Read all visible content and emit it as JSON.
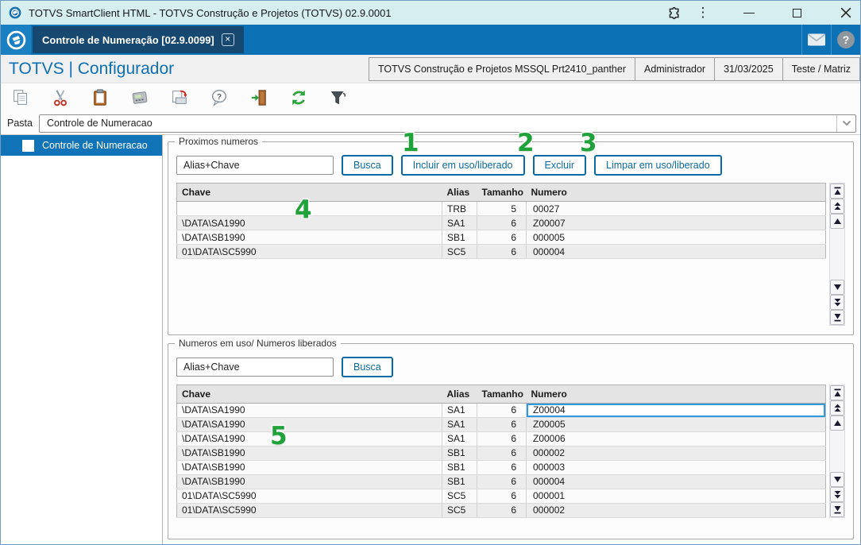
{
  "window": {
    "title": "TOTVS SmartClient HTML - TOTVS Construção e Projetos (TOTVS) 02.9.0001",
    "icons": [
      "app-logo",
      "extensions",
      "menu-kebab",
      "minimize",
      "maximize",
      "close"
    ]
  },
  "tabbar": {
    "active_tab": "Controle de Numeração [02.9.0099]",
    "icons": [
      "totvs-logo",
      "close-tab",
      "mail",
      "help"
    ]
  },
  "header": {
    "app_title": "TOTVS | Configurador",
    "environment": "TOTVS Construção e Projetos MSSQL Prt2410_panther",
    "user": "Administrador",
    "date": "31/03/2025",
    "branch": "Teste / Matriz"
  },
  "toolbar": {
    "icons": [
      "copy",
      "cut",
      "paste",
      "calculator",
      "print-spool",
      "help-balloon",
      "exit-door",
      "refresh",
      "filter"
    ]
  },
  "pasta": {
    "label": "Pasta",
    "value": "Controle de Numeracao"
  },
  "sidebar": {
    "items": [
      {
        "label": "Controle de Numeracao",
        "selected": true
      }
    ]
  },
  "groups": {
    "proximos": {
      "legend": "Proximos numeros",
      "search_value": "Alias+Chave",
      "buttons": [
        "Busca",
        "Incluir em uso/liberado",
        "Excluir",
        "Limpar em uso/liberado"
      ],
      "table": {
        "headers": [
          "Chave",
          "Alias",
          "Tamanho",
          "Numero"
        ],
        "rows": [
          [
            "",
            "TRB",
            "5",
            "00027"
          ],
          [
            "\\DATA\\SA1990",
            "SA1",
            "6",
            "Z00007"
          ],
          [
            "\\DATA\\SB1990",
            "SB1",
            "6",
            "000005"
          ],
          [
            "01\\DATA\\SC5990",
            "SC5",
            "6",
            "000004"
          ]
        ]
      }
    },
    "emuso": {
      "legend": "Numeros em uso/ Numeros liberados",
      "search_value": "Alias+Chave",
      "buttons": [
        "Busca"
      ],
      "table": {
        "headers": [
          "Chave",
          "Alias",
          "Tamanho",
          "Numero"
        ],
        "selected_cell": {
          "row": 0,
          "col": 3
        },
        "rows": [
          [
            "\\DATA\\SA1990",
            "SA1",
            "6",
            "Z00004"
          ],
          [
            "\\DATA\\SA1990",
            "SA1",
            "6",
            "Z00005"
          ],
          [
            "\\DATA\\SA1990",
            "SA1",
            "6",
            "Z00006"
          ],
          [
            "\\DATA\\SB1990",
            "SB1",
            "6",
            "000002"
          ],
          [
            "\\DATA\\SB1990",
            "SB1",
            "6",
            "000003"
          ],
          [
            "\\DATA\\SB1990",
            "SB1",
            "6",
            "000004"
          ],
          [
            "01\\DATA\\SC5990",
            "SC5",
            "6",
            "000001"
          ],
          [
            "01\\DATA\\SC5990",
            "SC5",
            "6",
            "000002"
          ]
        ]
      }
    }
  },
  "annotations": [
    "1",
    "2",
    "3",
    "4",
    "5"
  ],
  "colors": {
    "tabbar_blue": "#0d72b5",
    "active_tab_navy": "#17486f",
    "titlebar_cyan": "#d6eef0",
    "accent_link_blue": "#0e6fb5",
    "button_border_blue": "#0a6aa3",
    "selected_row_blue": "#1173b8",
    "cell_selection_blue": "#2e9be0",
    "annotation_green": "#1fa23a"
  }
}
